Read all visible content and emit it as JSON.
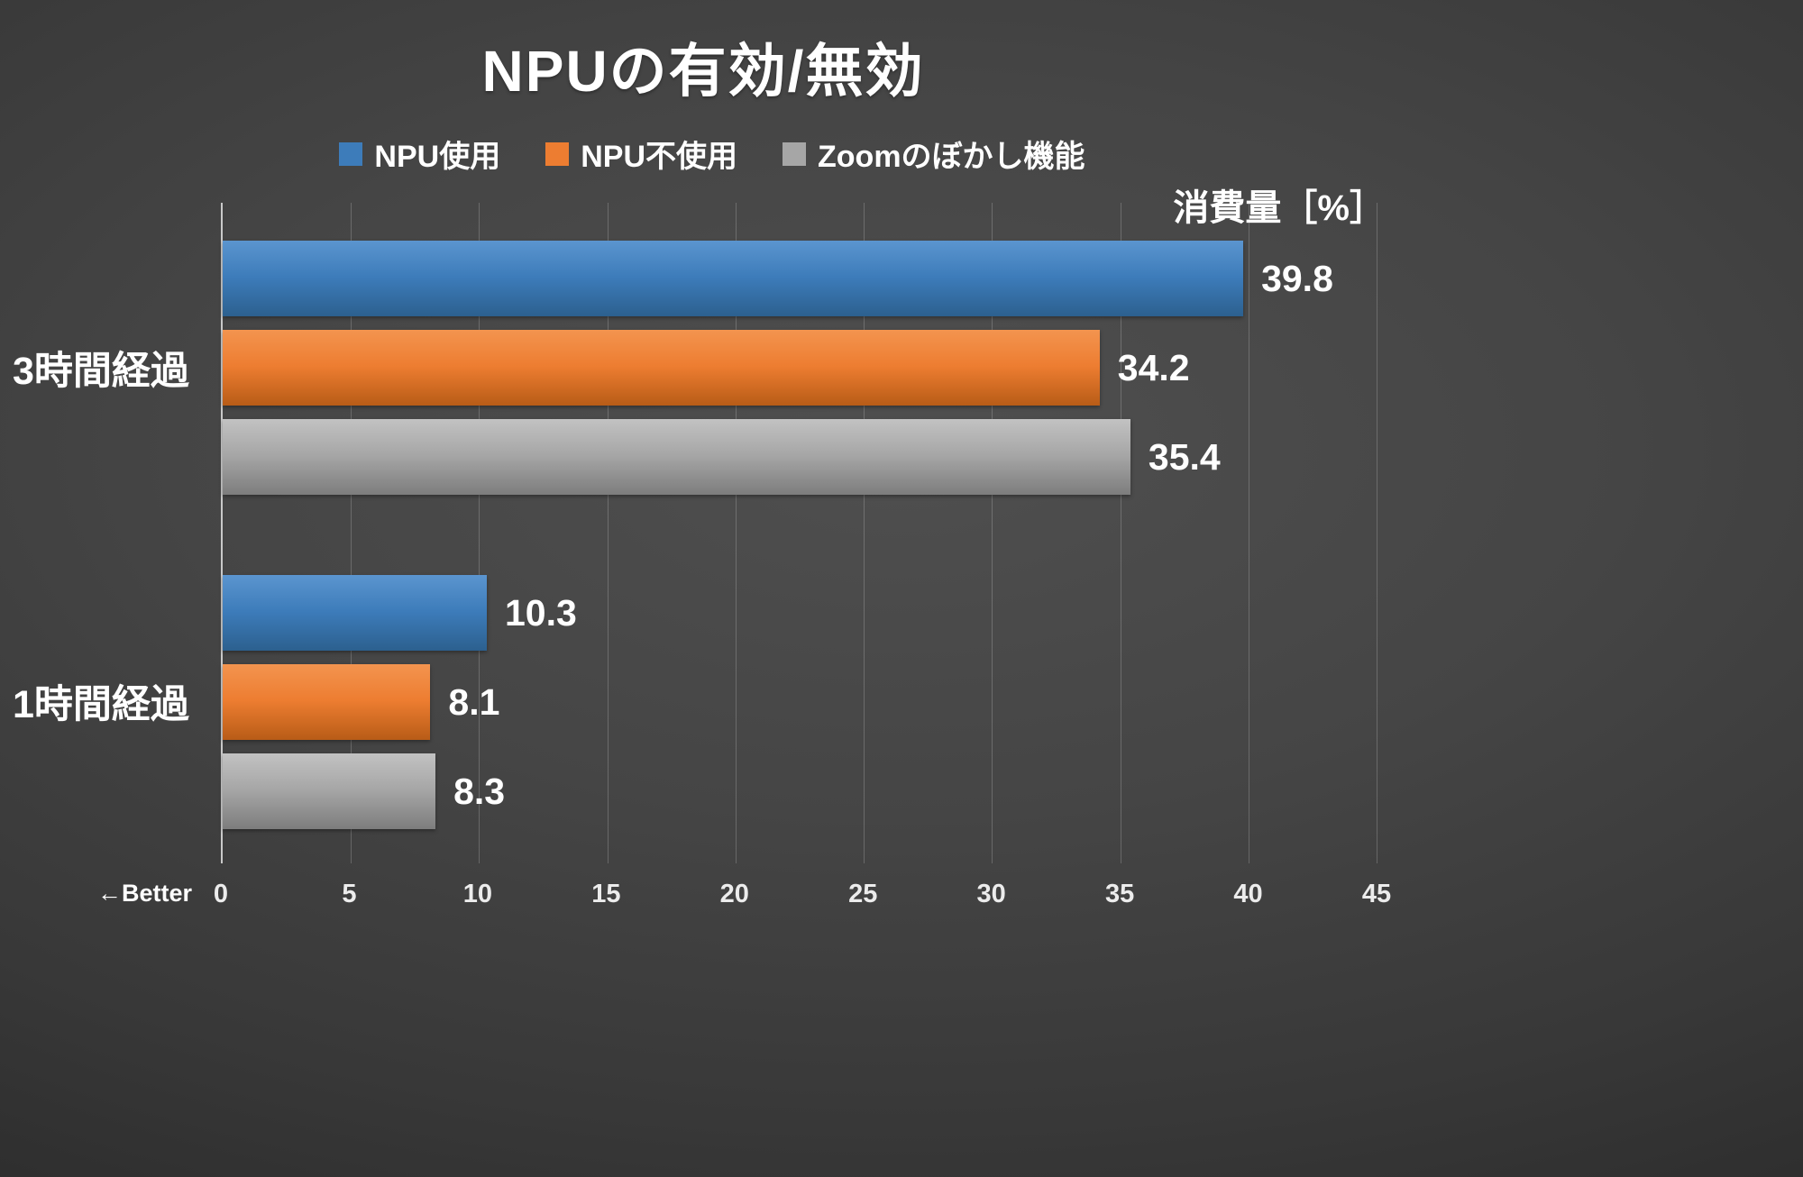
{
  "chart": {
    "title": "NPUの有効/無効",
    "axis_note": "消費量［%］",
    "better_note": "←Better"
  },
  "chart_data": {
    "type": "bar",
    "orientation": "horizontal",
    "title": "NPUの有効/無効",
    "xlabel": "消費量［%］",
    "ylabel": "",
    "xlim": [
      0,
      45
    ],
    "x_ticks": [
      0,
      5,
      10,
      15,
      20,
      25,
      30,
      35,
      40,
      45
    ],
    "grid": true,
    "legend_position": "top",
    "categories": [
      "3時間経過",
      "1時間経過"
    ],
    "series": [
      {
        "name": "NPU使用",
        "values": [
          39.8,
          10.3
        ],
        "color": "#3d7cba",
        "color_top": "#5b95cf",
        "color_bottom": "#2c608f"
      },
      {
        "name": "NPU不使用",
        "values": [
          34.2,
          8.1
        ],
        "color": "#ed7d31",
        "color_top": "#f3944f",
        "color_bottom": "#b85c17"
      },
      {
        "name": "Zoomのぼかし機能",
        "values": [
          35.4,
          8.3
        ],
        "color": "#a6a6a6",
        "color_top": "#c2c2c2",
        "color_bottom": "#7d7d7d"
      }
    ]
  }
}
